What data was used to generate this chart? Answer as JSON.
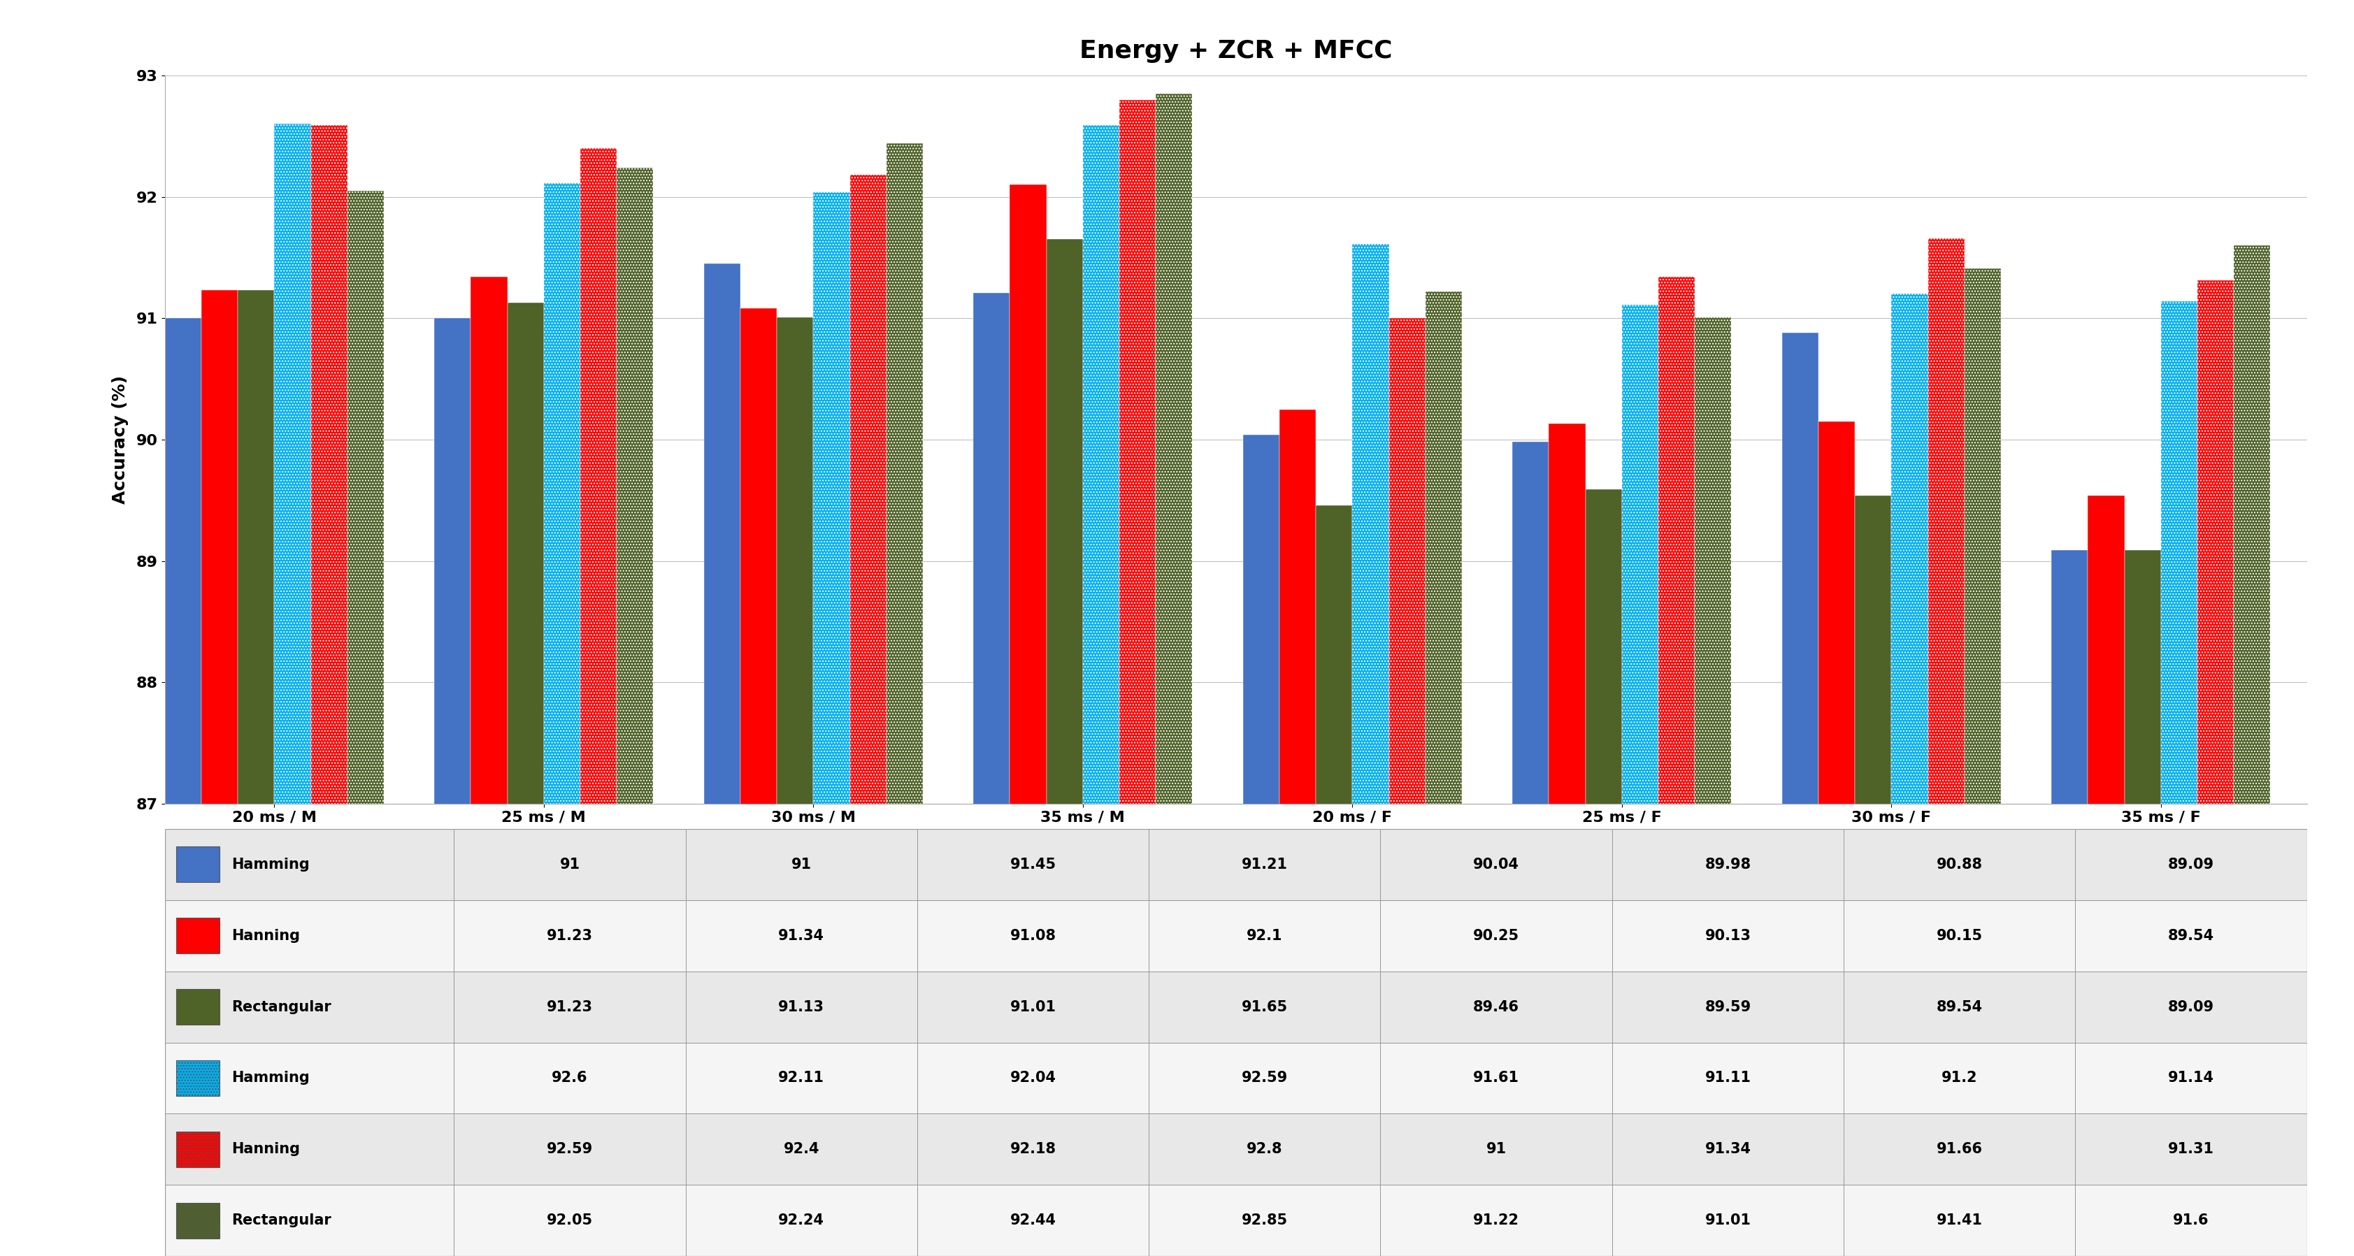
{
  "title": "Energy + ZCR + MFCC",
  "xlabel_groups": [
    "20 ms / M",
    "25 ms / M",
    "30 ms / M",
    "35 ms / M",
    "20 ms / F",
    "25 ms / F",
    "30 ms / F",
    "35 ms / F"
  ],
  "ylabel": "Accuracy (%)",
  "ylim": [
    87,
    93
  ],
  "yticks": [
    87,
    88,
    89,
    90,
    91,
    92,
    93
  ],
  "series": [
    {
      "label": "Hamming",
      "color": "#4472C4",
      "hatch": "",
      "values": [
        91,
        91,
        91.45,
        91.21,
        90.04,
        89.98,
        90.88,
        89.09
      ]
    },
    {
      "label": "Hanning",
      "color": "#FF0000",
      "hatch": "",
      "values": [
        91.23,
        91.34,
        91.08,
        92.1,
        90.25,
        90.13,
        90.15,
        89.54
      ]
    },
    {
      "label": "Rectangular",
      "color": "#4F6228",
      "hatch": "",
      "values": [
        91.23,
        91.13,
        91.01,
        91.65,
        89.46,
        89.59,
        89.54,
        89.09
      ]
    },
    {
      "label": "Hamming",
      "color": "#00B0F0",
      "hatch": "....",
      "values": [
        92.6,
        92.11,
        92.04,
        92.59,
        91.61,
        91.11,
        91.2,
        91.14
      ]
    },
    {
      "label": "Hanning",
      "color": "#FF0000",
      "hatch": "....",
      "values": [
        92.59,
        92.4,
        92.18,
        92.8,
        91,
        91.34,
        91.66,
        91.31
      ]
    },
    {
      "label": "Rectangular",
      "color": "#4F6228",
      "hatch": "....",
      "values": [
        92.05,
        92.24,
        92.44,
        92.85,
        91.22,
        91.01,
        91.41,
        91.6
      ]
    }
  ],
  "table_rows": [
    {
      "label": "Hamming",
      "legend_color": "#4472C4",
      "hatch": "",
      "values": [
        91,
        91,
        91.45,
        91.21,
        90.04,
        89.98,
        90.88,
        89.09
      ]
    },
    {
      "label": "Hanning",
      "legend_color": "#FF0000",
      "hatch": "",
      "values": [
        91.23,
        91.34,
        91.08,
        92.1,
        90.25,
        90.13,
        90.15,
        89.54
      ]
    },
    {
      "label": "Rectangular",
      "legend_color": "#4F6228",
      "hatch": "",
      "values": [
        91.23,
        91.13,
        91.01,
        91.65,
        89.46,
        89.59,
        89.54,
        89.09
      ]
    },
    {
      "label": "Hamming",
      "legend_color": "#00B0F0",
      "hatch": "....",
      "values": [
        92.6,
        92.11,
        92.04,
        92.59,
        91.61,
        91.11,
        91.2,
        91.14
      ]
    },
    {
      "label": "Hanning",
      "legend_color": "#FF0000",
      "hatch": "....",
      "values": [
        92.59,
        92.4,
        92.18,
        92.8,
        91,
        91.34,
        91.66,
        91.31
      ]
    },
    {
      "label": "Rectangular",
      "legend_color": "#4F6228",
      "hatch": "....",
      "values": [
        92.05,
        92.24,
        92.44,
        92.85,
        91.22,
        91.01,
        91.41,
        91.6
      ]
    }
  ],
  "background_color": "#FFFFFF",
  "grid_color": "#C0C0C0",
  "title_fontsize": 26,
  "axis_label_fontsize": 18,
  "tick_fontsize": 16,
  "table_fontsize": 15
}
